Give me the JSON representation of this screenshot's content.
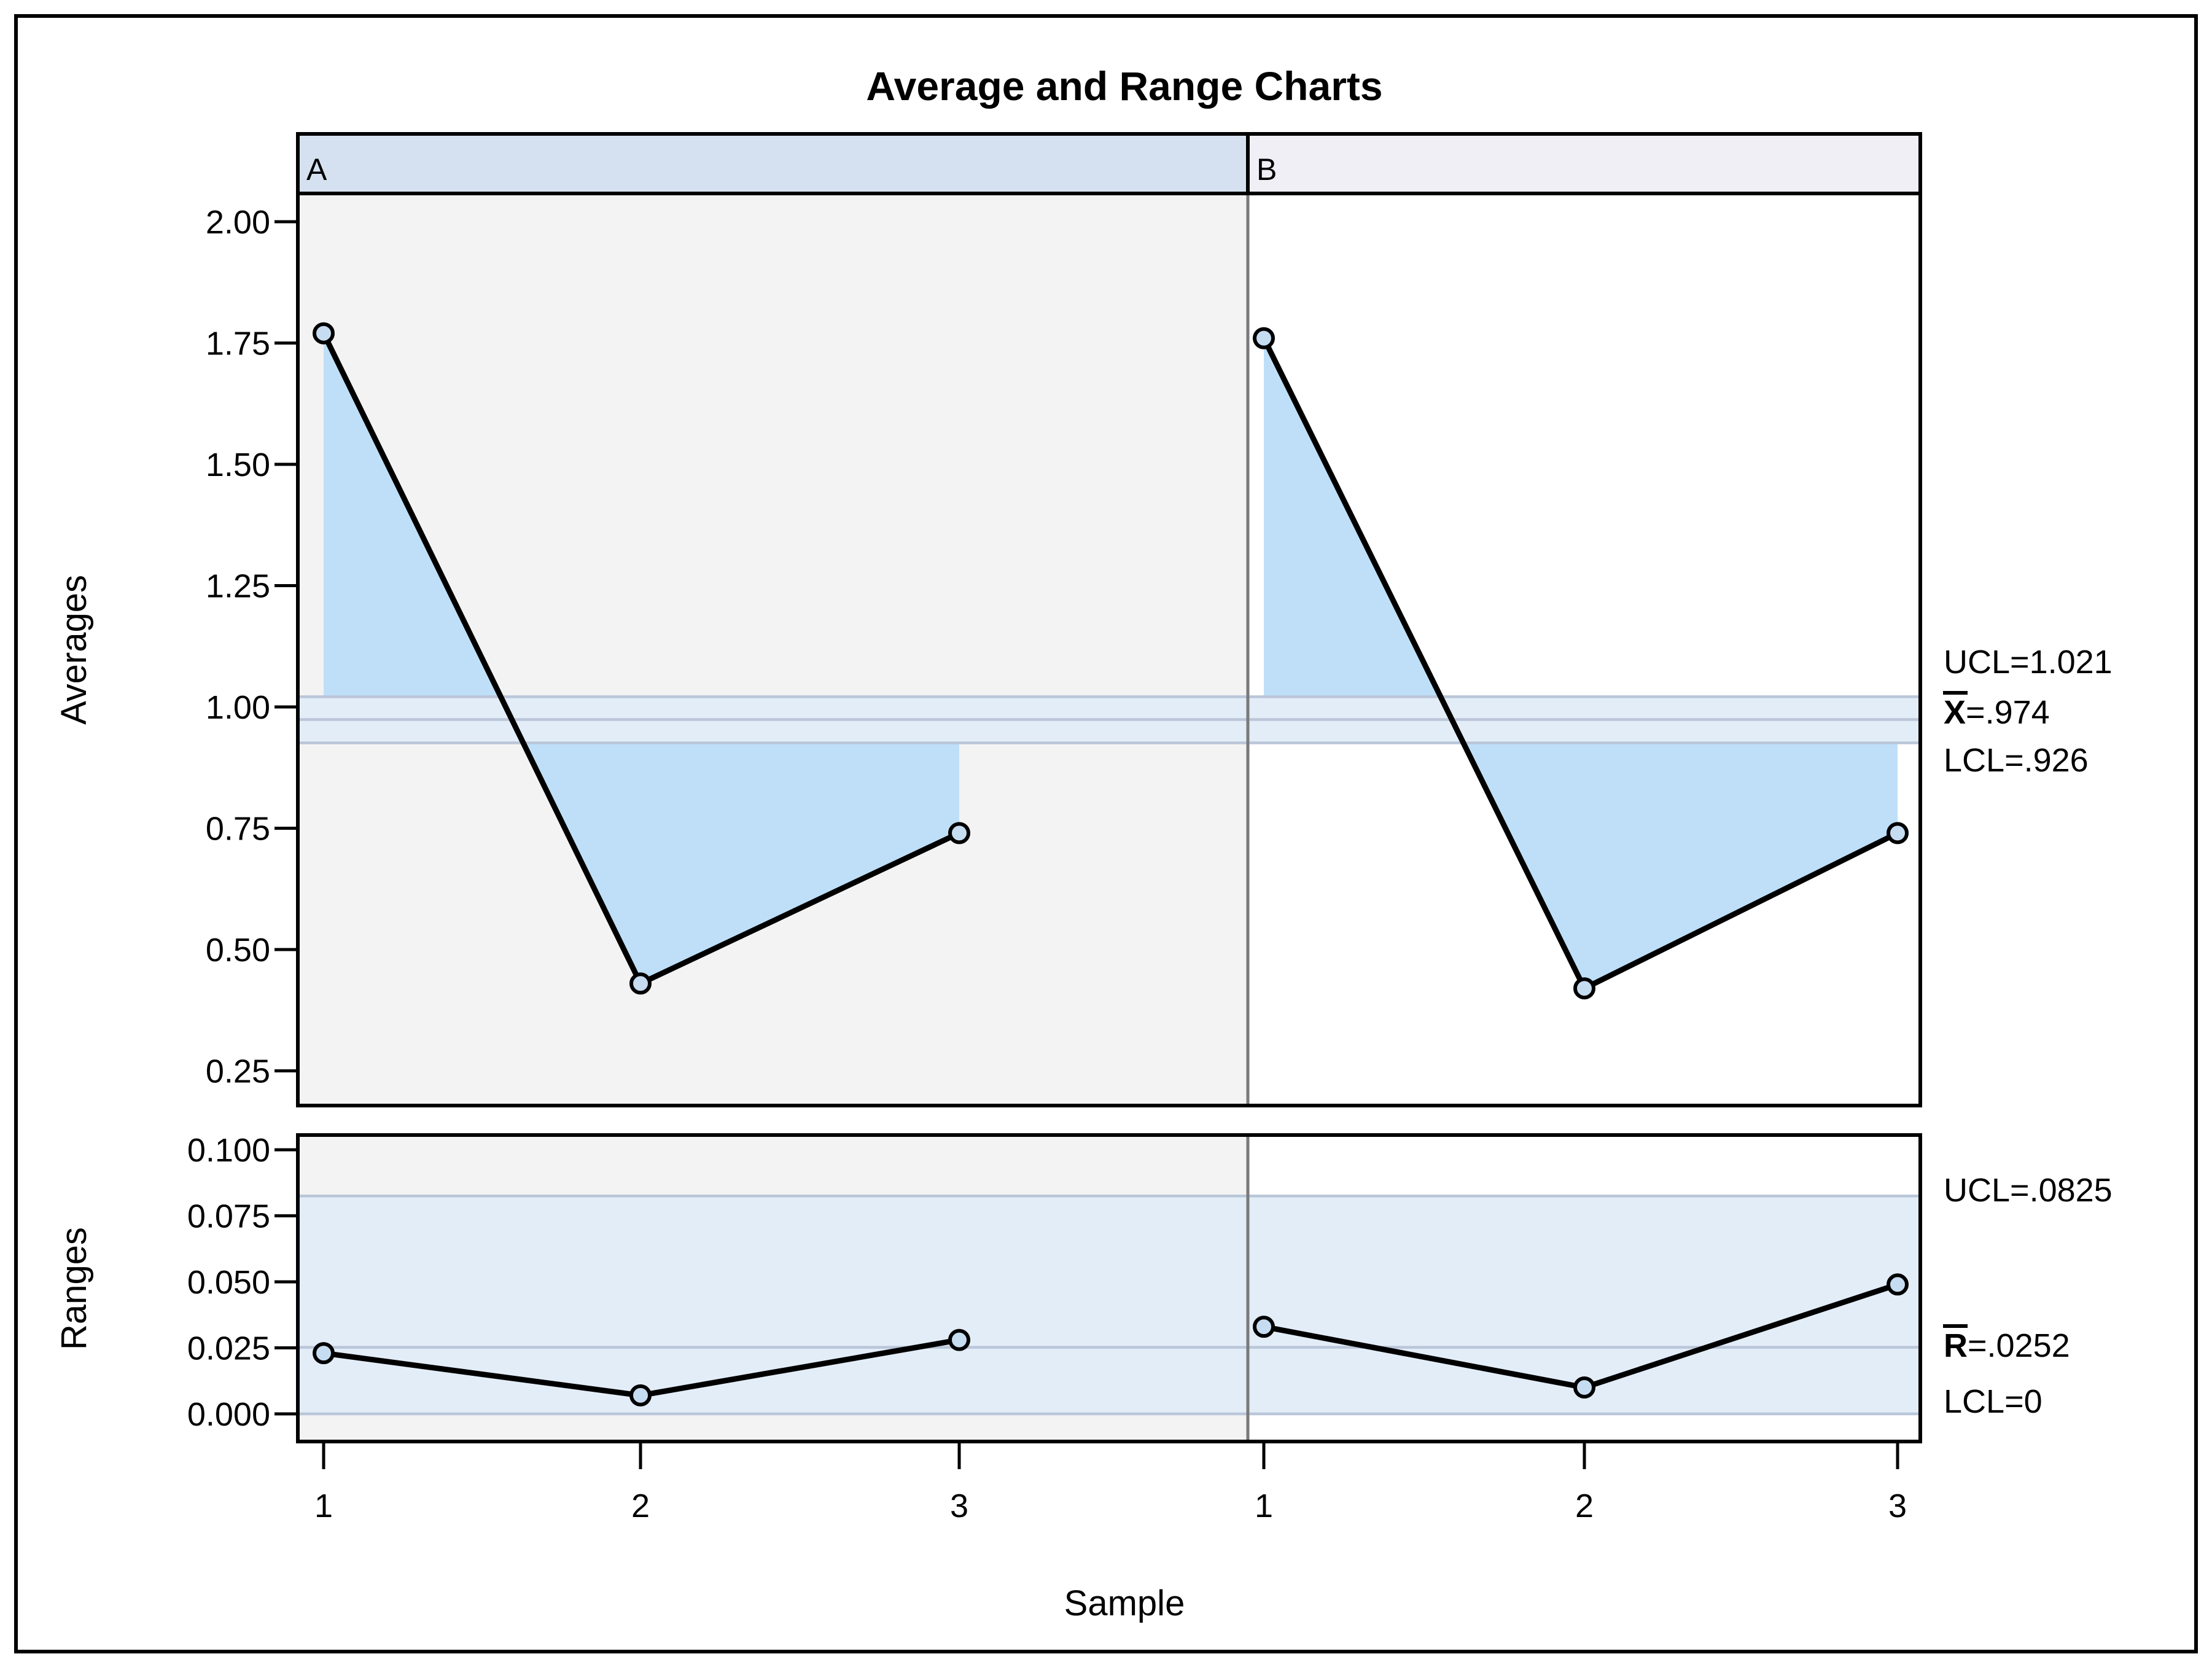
{
  "title": "Average and Range Charts",
  "xlabel": "Sample",
  "panel_headers": [
    "A",
    "B"
  ],
  "x_tick_labels": [
    "1",
    "2",
    "3"
  ],
  "chart_data": [
    {
      "type": "line",
      "name": "averages-chart",
      "title": "Average and Range Charts",
      "ylabel": "Averages",
      "xlabel": "Sample",
      "panels": [
        "A",
        "B"
      ],
      "x": [
        1,
        2,
        3
      ],
      "series": [
        {
          "name": "A",
          "values": [
            1.77,
            0.43,
            0.74
          ]
        },
        {
          "name": "B",
          "values": [
            1.76,
            0.42,
            0.74
          ]
        }
      ],
      "ytick_labels": [
        "2.00",
        "1.75",
        "1.50",
        "1.25",
        "1.00",
        "0.75",
        "0.50",
        "0.25"
      ],
      "ytick_values": [
        2.0,
        1.75,
        1.5,
        1.25,
        1.0,
        0.75,
        0.5,
        0.25
      ],
      "ylim": [
        0.18,
        2.06
      ],
      "grid": false,
      "legend_position": "none",
      "limits": {
        "ucl": 1.021,
        "center": 0.974,
        "lcl": 0.926
      },
      "limit_labels": [
        {
          "prefix": "UCL",
          "rest": "=1.021",
          "overline": false
        },
        {
          "prefix": "X",
          "rest": "=.974",
          "overline": true
        },
        {
          "prefix": "LCL",
          "rest": "=.926",
          "overline": false
        }
      ]
    },
    {
      "type": "line",
      "name": "ranges-chart",
      "ylabel": "Ranges",
      "xlabel": "Sample",
      "panels": [
        "A",
        "B"
      ],
      "x": [
        1,
        2,
        3
      ],
      "series": [
        {
          "name": "A",
          "values": [
            0.023,
            0.007,
            0.028
          ]
        },
        {
          "name": "B",
          "values": [
            0.033,
            0.01,
            0.049
          ]
        }
      ],
      "ytick_labels": [
        "0.100",
        "0.075",
        "0.050",
        "0.025",
        "0.000"
      ],
      "ytick_values": [
        0.1,
        0.075,
        0.05,
        0.025,
        0.0
      ],
      "ylim": [
        -0.011,
        0.106
      ],
      "grid": false,
      "legend_position": "none",
      "limits": {
        "ucl": 0.0825,
        "center": 0.0252,
        "lcl": 0
      },
      "limit_labels": [
        {
          "prefix": "UCL",
          "rest": "=.0825",
          "overline": false
        },
        {
          "prefix": "R",
          "rest": "=.0252",
          "overline": true
        },
        {
          "prefix": "LCL",
          "rest": "=0",
          "overline": false
        }
      ]
    }
  ],
  "colors": {
    "panel_a_bg": "#F3F3F3",
    "panel_b_bg": "#FFFFFF",
    "header_a_bg": "#D5E1F0",
    "header_b_bg": "#EFEFF5",
    "band_fill": "#E3EDF8",
    "out_of_limit_fill": "#BEDFF7",
    "limit_line": "#BAC6D8",
    "marker_fill": "#C6DCF1",
    "series_line": "#000000",
    "frame": "#000000",
    "panel_divider": "#7A7A7A"
  }
}
